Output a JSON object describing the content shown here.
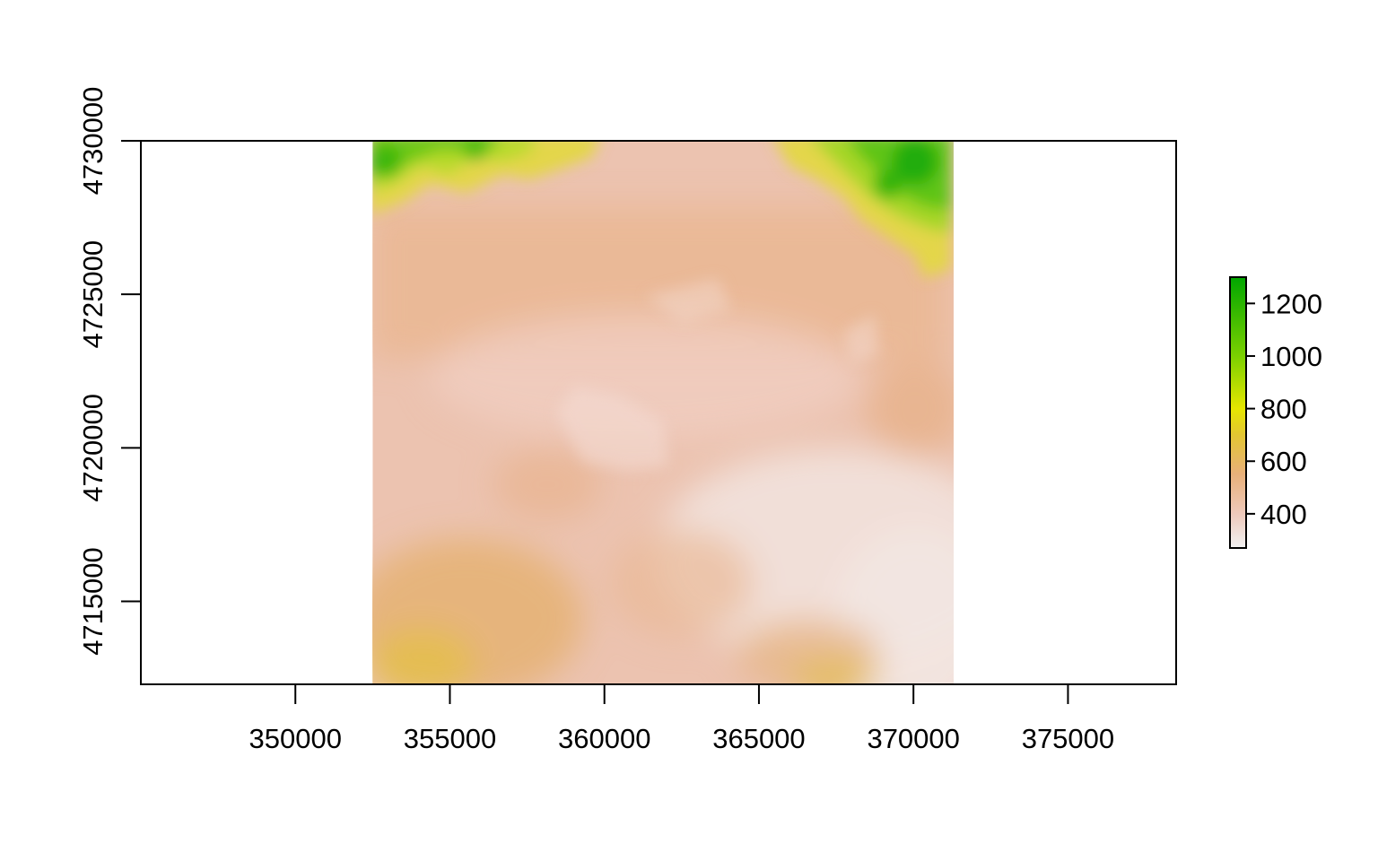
{
  "chart_data": {
    "type": "heatmap",
    "title": "",
    "xlabel": "",
    "ylabel": "",
    "xlim": [
      345000,
      378500
    ],
    "ylim": [
      4712300,
      4730000
    ],
    "raster_extent": {
      "xmin": 352500,
      "xmax": 371300,
      "ymin": 4712300,
      "ymax": 4730000
    },
    "x_ticks": [
      {
        "value": 350000,
        "label": "350000"
      },
      {
        "value": 355000,
        "label": "355000"
      },
      {
        "value": 360000,
        "label": "360000"
      },
      {
        "value": 365000,
        "label": "365000"
      },
      {
        "value": 370000,
        "label": "370000"
      },
      {
        "value": 375000,
        "label": "375000"
      }
    ],
    "y_ticks": [
      {
        "value": 4715000,
        "label": "4715000"
      },
      {
        "value": 4720000,
        "label": "4720000"
      },
      {
        "value": 4725000,
        "label": "4725000"
      },
      {
        "value": 4730000,
        "label": "4730000"
      }
    ],
    "legend": {
      "placement": "right",
      "range": [
        270,
        1300
      ],
      "ticks": [
        {
          "value": 400,
          "label": "400"
        },
        {
          "value": 600,
          "label": "600"
        },
        {
          "value": 800,
          "label": "800"
        },
        {
          "value": 1000,
          "label": "1000"
        },
        {
          "value": 1200,
          "label": "1200"
        }
      ],
      "color_stops": [
        {
          "value": 270,
          "color": "#f2f2f2"
        },
        {
          "value": 400,
          "color": "#eec9bb"
        },
        {
          "value": 550,
          "color": "#e8b07a"
        },
        {
          "value": 700,
          "color": "#e3c632"
        },
        {
          "value": 800,
          "color": "#e6e600"
        },
        {
          "value": 1000,
          "color": "#7bd000"
        },
        {
          "value": 1300,
          "color": "#00a600"
        }
      ]
    },
    "grid": false
  }
}
